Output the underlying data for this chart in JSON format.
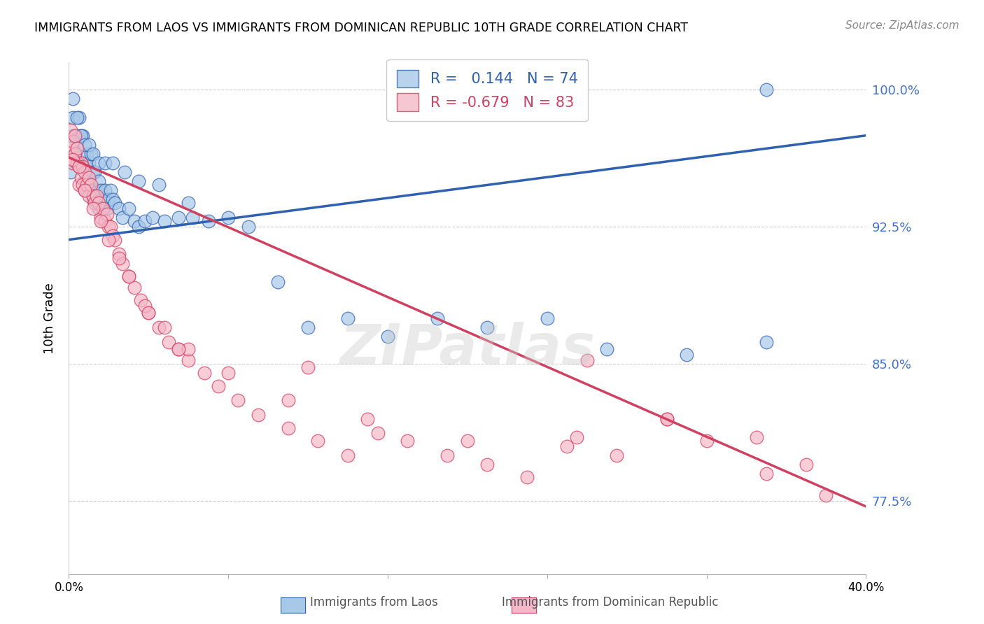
{
  "title": "IMMIGRANTS FROM LAOS VS IMMIGRANTS FROM DOMINICAN REPUBLIC 10TH GRADE CORRELATION CHART",
  "source": "Source: ZipAtlas.com",
  "ylabel": "10th Grade",
  "xlim": [
    0.0,
    0.4
  ],
  "ylim": [
    0.735,
    1.015
  ],
  "yticks": [
    0.775,
    0.85,
    0.925,
    1.0
  ],
  "ytick_labels": [
    "77.5%",
    "85.0%",
    "92.5%",
    "100.0%"
  ],
  "xticks": [
    0.0,
    0.08,
    0.16,
    0.24,
    0.32,
    0.4
  ],
  "xtick_labels": [
    "0.0%",
    "",
    "",
    "",
    "",
    "40.0%"
  ],
  "blue_R": 0.144,
  "blue_N": 74,
  "pink_R": -0.679,
  "pink_N": 83,
  "blue_color": "#a8c8e8",
  "pink_color": "#f5b8c8",
  "blue_line_color": "#3060b0",
  "pink_line_color": "#d04060",
  "blue_label": "Immigrants from Laos",
  "pink_label": "Immigrants from Dominican Republic",
  "background_color": "#ffffff",
  "watermark": "ZIPatlas",
  "blue_line_x0": 0.0,
  "blue_line_y0": 0.918,
  "blue_line_x1": 0.4,
  "blue_line_y1": 0.975,
  "pink_line_x0": 0.0,
  "pink_line_y0": 0.963,
  "pink_line_x1": 0.4,
  "pink_line_y1": 0.772,
  "blue_scatter_x": [
    0.001,
    0.002,
    0.002,
    0.003,
    0.003,
    0.004,
    0.004,
    0.005,
    0.005,
    0.005,
    0.006,
    0.006,
    0.007,
    0.007,
    0.008,
    0.008,
    0.009,
    0.009,
    0.01,
    0.01,
    0.011,
    0.011,
    0.012,
    0.012,
    0.013,
    0.013,
    0.014,
    0.015,
    0.015,
    0.016,
    0.017,
    0.018,
    0.019,
    0.02,
    0.021,
    0.022,
    0.023,
    0.025,
    0.027,
    0.03,
    0.033,
    0.035,
    0.038,
    0.042,
    0.048,
    0.055,
    0.062,
    0.07,
    0.08,
    0.09,
    0.105,
    0.12,
    0.14,
    0.16,
    0.185,
    0.21,
    0.24,
    0.27,
    0.31,
    0.35,
    0.002,
    0.004,
    0.006,
    0.008,
    0.01,
    0.012,
    0.015,
    0.018,
    0.022,
    0.028,
    0.035,
    0.045,
    0.06,
    0.35
  ],
  "blue_scatter_y": [
    0.955,
    0.975,
    0.985,
    0.975,
    0.965,
    0.97,
    0.96,
    0.975,
    0.985,
    0.96,
    0.975,
    0.96,
    0.975,
    0.96,
    0.96,
    0.95,
    0.965,
    0.945,
    0.96,
    0.95,
    0.965,
    0.945,
    0.955,
    0.94,
    0.955,
    0.94,
    0.945,
    0.95,
    0.935,
    0.945,
    0.94,
    0.945,
    0.935,
    0.94,
    0.945,
    0.94,
    0.938,
    0.935,
    0.93,
    0.935,
    0.928,
    0.925,
    0.928,
    0.93,
    0.928,
    0.93,
    0.93,
    0.928,
    0.93,
    0.925,
    0.895,
    0.87,
    0.875,
    0.865,
    0.875,
    0.87,
    0.875,
    0.858,
    0.855,
    0.862,
    0.995,
    0.985,
    0.975,
    0.97,
    0.97,
    0.965,
    0.96,
    0.96,
    0.96,
    0.955,
    0.95,
    0.948,
    0.938,
    1.0
  ],
  "pink_scatter_x": [
    0.001,
    0.001,
    0.002,
    0.002,
    0.003,
    0.003,
    0.004,
    0.004,
    0.005,
    0.005,
    0.006,
    0.006,
    0.007,
    0.007,
    0.008,
    0.008,
    0.009,
    0.01,
    0.01,
    0.011,
    0.012,
    0.013,
    0.014,
    0.015,
    0.016,
    0.017,
    0.018,
    0.019,
    0.02,
    0.021,
    0.022,
    0.023,
    0.025,
    0.027,
    0.03,
    0.033,
    0.036,
    0.04,
    0.045,
    0.05,
    0.055,
    0.06,
    0.068,
    0.075,
    0.085,
    0.095,
    0.11,
    0.125,
    0.14,
    0.155,
    0.17,
    0.19,
    0.21,
    0.23,
    0.255,
    0.275,
    0.3,
    0.32,
    0.345,
    0.37,
    0.002,
    0.005,
    0.008,
    0.012,
    0.016,
    0.02,
    0.025,
    0.03,
    0.038,
    0.048,
    0.06,
    0.08,
    0.11,
    0.15,
    0.2,
    0.25,
    0.3,
    0.35,
    0.38,
    0.04,
    0.055,
    0.12,
    0.26
  ],
  "pink_scatter_y": [
    0.968,
    0.978,
    0.972,
    0.96,
    0.965,
    0.975,
    0.96,
    0.968,
    0.958,
    0.948,
    0.96,
    0.952,
    0.958,
    0.948,
    0.955,
    0.945,
    0.948,
    0.952,
    0.942,
    0.948,
    0.942,
    0.938,
    0.942,
    0.938,
    0.93,
    0.935,
    0.928,
    0.932,
    0.925,
    0.925,
    0.92,
    0.918,
    0.91,
    0.905,
    0.898,
    0.892,
    0.885,
    0.878,
    0.87,
    0.862,
    0.858,
    0.852,
    0.845,
    0.838,
    0.83,
    0.822,
    0.815,
    0.808,
    0.8,
    0.812,
    0.808,
    0.8,
    0.795,
    0.788,
    0.81,
    0.8,
    0.82,
    0.808,
    0.81,
    0.795,
    0.962,
    0.958,
    0.945,
    0.935,
    0.928,
    0.918,
    0.908,
    0.898,
    0.882,
    0.87,
    0.858,
    0.845,
    0.83,
    0.82,
    0.808,
    0.805,
    0.82,
    0.79,
    0.778,
    0.878,
    0.858,
    0.848,
    0.852
  ]
}
